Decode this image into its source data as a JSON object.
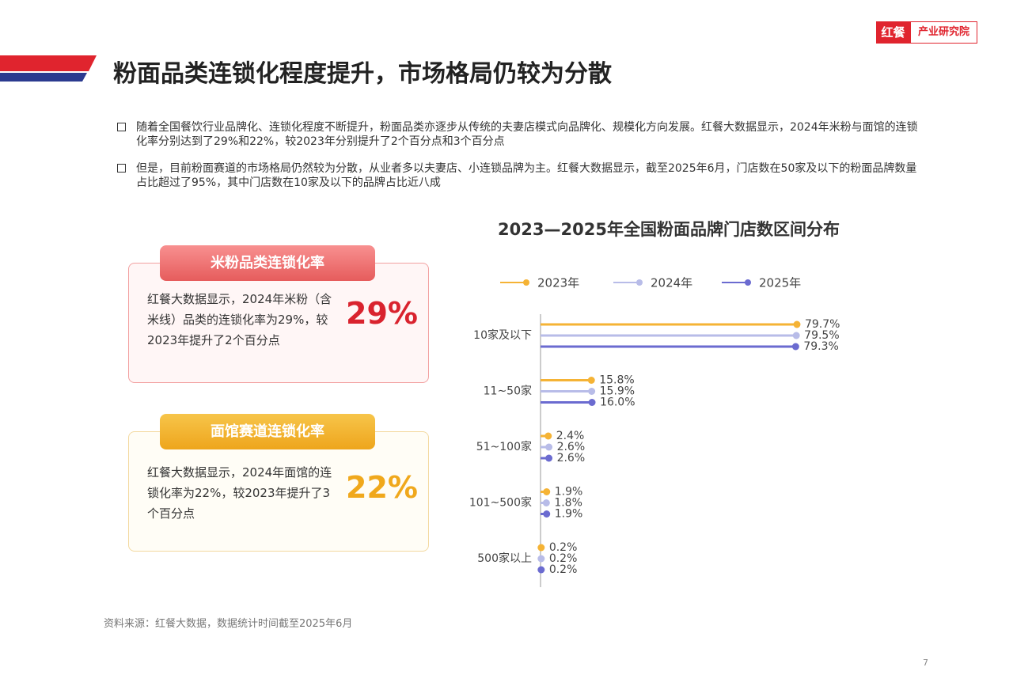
{
  "header": {
    "title": "粉面品类连锁化程度提升，市场格局仍较为分散",
    "logo_brand": "红餐",
    "logo_sub": "产业研究院"
  },
  "bullets": [
    "随着全国餐饮行业品牌化、连锁化程度不断提升，粉面品类亦逐步从传统的夫妻店模式向品牌化、规模化方向发展。红餐大数据显示，2024年米粉与面馆的连锁化率分别达到了29%和22%，较2023年分别提升了2个百分点和3个百分点",
    "但是，目前粉面赛道的市场格局仍然较为分散，从业者多以夫妻店、小连锁品牌为主。红餐大数据显示，截至2025年6月，门店数在50家及以下的粉面品牌数量占比超过了95%，其中门店数在10家及以下的品牌占比近八成"
  ],
  "cards": [
    {
      "title": "米粉品类连锁化率",
      "text": "红餐大数据显示，2024年米粉（含米线）品类的连锁化率为29%，较2023年提升了2个百分点",
      "stat": "29%"
    },
    {
      "title": "面馆赛道连锁化率",
      "text": "红餐大数据显示，2024年面馆的连锁化率为22%，较2023年提升了3个百分点",
      "stat": "22%"
    }
  ],
  "chart_data": {
    "type": "lollipop",
    "title": "2023—2025年全国粉面品牌门店数区间分布",
    "categories": [
      "10家及以下",
      "11~50家",
      "51~100家",
      "101~500家",
      "500家以上"
    ],
    "xlim": [
      0,
      100
    ],
    "series": [
      {
        "name": "2023年",
        "color": "#f5b335",
        "values": [
          79.7,
          15.8,
          2.4,
          1.9,
          0.2
        ],
        "value_labels": [
          "79.7%",
          "15.8%",
          "2.4%",
          "1.9%",
          "0.2%"
        ]
      },
      {
        "name": "2024年",
        "color": "#b8bce8",
        "values": [
          79.5,
          15.9,
          2.6,
          1.8,
          0.2
        ],
        "value_labels": [
          "79.5%",
          "15.9%",
          "2.6%",
          "1.8%",
          "0.2%"
        ]
      },
      {
        "name": "2025年",
        "color": "#6b6bd0",
        "values": [
          79.3,
          16.0,
          2.6,
          1.9,
          0.2
        ],
        "value_labels": [
          "79.3%",
          "16.0%",
          "2.6%",
          "1.9%",
          "0.2%"
        ]
      }
    ]
  },
  "source": "资料来源：红餐大数据，数据统计时间截至2025年6月",
  "page_number": "7"
}
